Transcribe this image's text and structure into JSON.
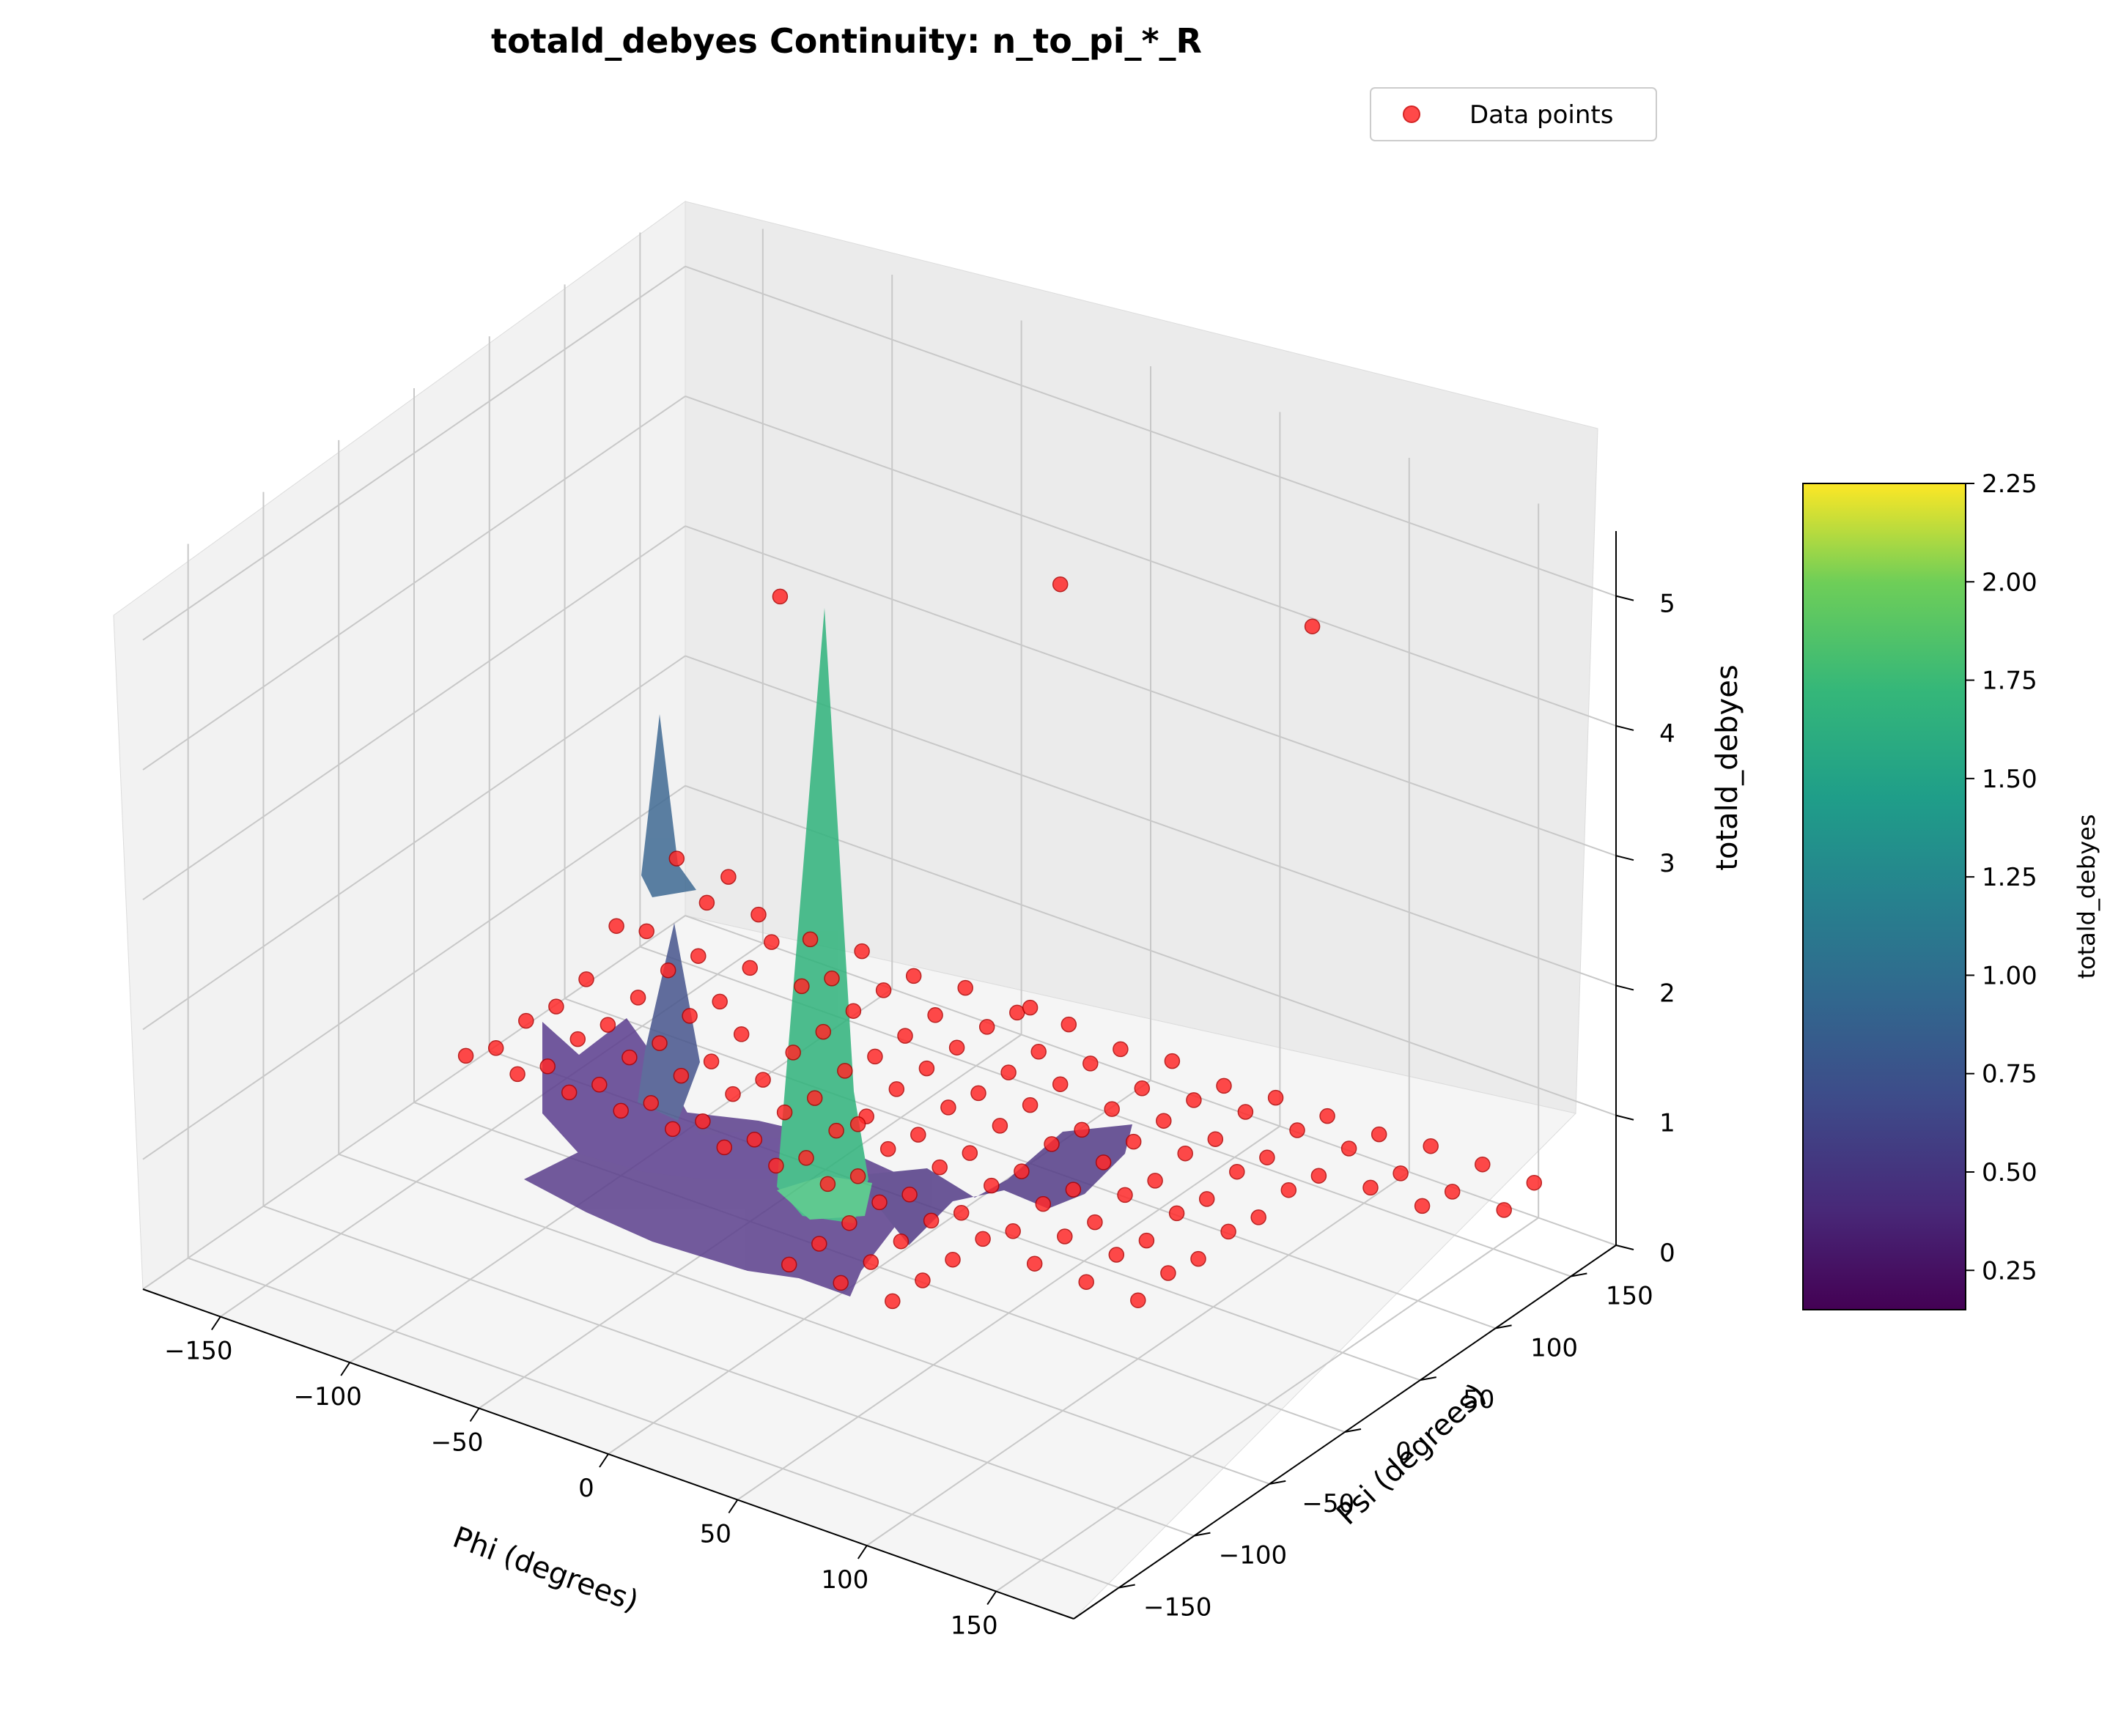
{
  "chart_data": {
    "type": "surface3d",
    "title": "totald_debyes Continuity: n_to_pi_*_R",
    "xlabel": "Phi (degrees)",
    "ylabel": "Psi (degrees)",
    "zlabel": "totald_debyes",
    "xlim": [
      -180,
      180
    ],
    "ylim": [
      -180,
      180
    ],
    "zlim": [
      0,
      5.5
    ],
    "x_ticks": [
      -150,
      -100,
      -50,
      0,
      50,
      100,
      150
    ],
    "x_tick_labels": [
      "−150",
      "−100",
      "−50",
      "0",
      "50",
      "100",
      "150"
    ],
    "y_ticks": [
      -150,
      -100,
      -50,
      0,
      50,
      100,
      150
    ],
    "y_tick_labels": [
      "−150",
      "−100",
      "−50",
      "0",
      "50",
      "100",
      "150"
    ],
    "z_ticks": [
      0,
      1,
      2,
      3,
      4,
      5
    ],
    "z_tick_labels": [
      "0",
      "1",
      "2",
      "3",
      "4",
      "5"
    ],
    "grid": true,
    "legend": {
      "position": "top-right",
      "entries": [
        {
          "name": "Data points",
          "color": "#ff2a2a"
        }
      ]
    },
    "colorbar": {
      "label": "totald_debyes",
      "colormap": "viridis",
      "range": [
        0.15,
        2.25
      ],
      "ticks": [
        0.25,
        0.5,
        0.75,
        1.0,
        1.25,
        1.5,
        1.75,
        2.0,
        2.25
      ],
      "tick_labels": [
        "0.25",
        "0.50",
        "0.75",
        "1.00",
        "1.25",
        "1.50",
        "1.75",
        "2.00",
        "2.25"
      ]
    },
    "point_color": "#ff2a2a",
    "points": [
      {
        "x": -160,
        "y": 0,
        "z": 0.5
      },
      {
        "x": -140,
        "y": 0,
        "z": 0.5
      },
      {
        "x": -120,
        "y": 0,
        "z": 0.5
      },
      {
        "x": -100,
        "y": 0,
        "z": 0.5
      },
      {
        "x": -80,
        "y": 0,
        "z": 0.5
      },
      {
        "x": -60,
        "y": 0,
        "z": 0.5
      },
      {
        "x": -40,
        "y": 0,
        "z": 0.5
      },
      {
        "x": -20,
        "y": 0,
        "z": 0.5
      },
      {
        "x": 0,
        "y": 0,
        "z": 0.5
      },
      {
        "x": 20,
        "y": 0,
        "z": 0.5
      },
      {
        "x": 40,
        "y": 0,
        "z": 0.5
      },
      {
        "x": -160,
        "y": 20,
        "z": 0.4
      },
      {
        "x": -140,
        "y": 20,
        "z": 0.4
      },
      {
        "x": -120,
        "y": 20,
        "z": 0.4
      },
      {
        "x": -100,
        "y": 20,
        "z": 0.4
      },
      {
        "x": -80,
        "y": 20,
        "z": 0.4
      },
      {
        "x": -60,
        "y": 20,
        "z": 0.4
      },
      {
        "x": -40,
        "y": 20,
        "z": 0.4
      },
      {
        "x": -20,
        "y": 20,
        "z": 0.4
      },
      {
        "x": 0,
        "y": 20,
        "z": 0.4
      },
      {
        "x": 20,
        "y": 20,
        "z": 0.4
      },
      {
        "x": 40,
        "y": 20,
        "z": 0.4
      },
      {
        "x": -160,
        "y": 40,
        "z": 0.45
      },
      {
        "x": -140,
        "y": 40,
        "z": 0.45
      },
      {
        "x": -120,
        "y": 40,
        "z": 0.45
      },
      {
        "x": -100,
        "y": 40,
        "z": 0.45
      },
      {
        "x": -80,
        "y": 40,
        "z": 0.45
      },
      {
        "x": -60,
        "y": 40,
        "z": 0.45
      },
      {
        "x": -40,
        "y": 40,
        "z": 0.45
      },
      {
        "x": -20,
        "y": 40,
        "z": 0.45
      },
      {
        "x": 0,
        "y": 40,
        "z": 0.45
      },
      {
        "x": 20,
        "y": 40,
        "z": 0.45
      },
      {
        "x": 40,
        "y": 40,
        "z": 0.45
      },
      {
        "x": -160,
        "y": 60,
        "z": 0.4
      },
      {
        "x": -140,
        "y": 60,
        "z": 0.4
      },
      {
        "x": -120,
        "y": 60,
        "z": 0.4
      },
      {
        "x": -100,
        "y": 60,
        "z": 0.4
      },
      {
        "x": -80,
        "y": 60,
        "z": 0.4
      },
      {
        "x": -60,
        "y": 60,
        "z": 0.4
      },
      {
        "x": -40,
        "y": 60,
        "z": 0.4
      },
      {
        "x": -20,
        "y": 60,
        "z": 0.4
      },
      {
        "x": 0,
        "y": 60,
        "z": 0.4
      },
      {
        "x": 20,
        "y": 60,
        "z": 0.4
      },
      {
        "x": 40,
        "y": 60,
        "z": 0.4
      },
      {
        "x": -160,
        "y": 80,
        "z": 0.45
      },
      {
        "x": -140,
        "y": 80,
        "z": 0.45
      },
      {
        "x": -120,
        "y": 80,
        "z": 0.45
      },
      {
        "x": -100,
        "y": 80,
        "z": 0.45
      },
      {
        "x": -80,
        "y": 80,
        "z": 0.45
      },
      {
        "x": -60,
        "y": 80,
        "z": 0.45
      },
      {
        "x": -40,
        "y": 80,
        "z": 0.45
      },
      {
        "x": -20,
        "y": 80,
        "z": 0.45
      },
      {
        "x": 0,
        "y": 80,
        "z": 0.45
      },
      {
        "x": 20,
        "y": 80,
        "z": 0.45
      },
      {
        "x": 40,
        "y": 80,
        "z": 0.45
      },
      {
        "x": -160,
        "y": 100,
        "z": 0.7
      },
      {
        "x": -140,
        "y": 100,
        "z": 0.5
      },
      {
        "x": -120,
        "y": 100,
        "z": 0.4
      },
      {
        "x": -100,
        "y": 100,
        "z": 1.0
      },
      {
        "x": -80,
        "y": 100,
        "z": 0.45
      },
      {
        "x": -60,
        "y": 100,
        "z": 0.4
      },
      {
        "x": -40,
        "y": 100,
        "z": 0.45
      },
      {
        "x": -20,
        "y": 100,
        "z": 0.4
      },
      {
        "x": 0,
        "y": 100,
        "z": 0.45
      },
      {
        "x": 20,
        "y": 100,
        "z": 0.4
      },
      {
        "x": 40,
        "y": 100,
        "z": 0.45
      },
      {
        "x": -160,
        "y": 120,
        "z": 0.5
      },
      {
        "x": -140,
        "y": 120,
        "z": 0.45
      },
      {
        "x": -120,
        "y": 120,
        "z": 0.5
      },
      {
        "x": -100,
        "y": 120,
        "z": 0.5
      },
      {
        "x": -80,
        "y": 120,
        "z": 0.45
      },
      {
        "x": -60,
        "y": 120,
        "z": 0.4
      },
      {
        "x": -40,
        "y": 120,
        "z": 0.45
      },
      {
        "x": -20,
        "y": 120,
        "z": 0.4
      },
      {
        "x": 0,
        "y": 120,
        "z": 0.45
      },
      {
        "x": 20,
        "y": 120,
        "z": 0.4
      },
      {
        "x": 40,
        "y": 120,
        "z": 0.45
      },
      {
        "x": -160,
        "y": 140,
        "z": 0.9
      },
      {
        "x": -140,
        "y": 140,
        "z": 0.9
      },
      {
        "x": -120,
        "y": 140,
        "z": 3.2
      },
      {
        "x": -100,
        "y": 140,
        "z": 0.4
      },
      {
        "x": -80,
        "y": 140,
        "z": 0.45
      },
      {
        "x": -60,
        "y": 140,
        "z": 0.4
      },
      {
        "x": -40,
        "y": 140,
        "z": 0.45
      },
      {
        "x": -20,
        "y": 140,
        "z": 0.4
      },
      {
        "x": 0,
        "y": 140,
        "z": 0.45
      },
      {
        "x": 20,
        "y": 140,
        "z": 0.4
      },
      {
        "x": 40,
        "y": 140,
        "z": 0.45
      },
      {
        "x": -160,
        "y": 160,
        "z": 0.4
      },
      {
        "x": -140,
        "y": 160,
        "z": 0.45
      },
      {
        "x": -120,
        "y": 160,
        "z": 0.4
      },
      {
        "x": -100,
        "y": 160,
        "z": 0.45
      },
      {
        "x": -80,
        "y": 160,
        "z": 0.4
      },
      {
        "x": -60,
        "y": 160,
        "z": 0.45
      },
      {
        "x": -40,
        "y": 160,
        "z": 0.4
      },
      {
        "x": -20,
        "y": 160,
        "z": 0.45
      },
      {
        "x": 0,
        "y": 160,
        "z": 0.4
      },
      {
        "x": 20,
        "y": 160,
        "z": 0.45
      },
      {
        "x": 40,
        "y": 160,
        "z": 0.4
      },
      {
        "x": 0,
        "y": -20,
        "z": 0.5
      },
      {
        "x": 20,
        "y": -20,
        "z": 0.5
      },
      {
        "x": 40,
        "y": -20,
        "z": 0.5
      },
      {
        "x": 0,
        "y": -40,
        "z": 0.5
      },
      {
        "x": 20,
        "y": -40,
        "z": 0.5
      },
      {
        "x": 40,
        "y": -40,
        "z": 0.5
      },
      {
        "x": 0,
        "y": -60,
        "z": 0.5
      },
      {
        "x": 20,
        "y": -60,
        "z": 0.5
      },
      {
        "x": 40,
        "y": -60,
        "z": 0.5
      },
      {
        "x": -20,
        "y": 20,
        "z": 0.8
      },
      {
        "x": 60,
        "y": 0,
        "z": 0.45
      },
      {
        "x": 80,
        "y": 0,
        "z": 0.45
      },
      {
        "x": 100,
        "y": 0,
        "z": 0.45
      },
      {
        "x": 60,
        "y": 20,
        "z": 0.5
      },
      {
        "x": 80,
        "y": 20,
        "z": 0.5
      },
      {
        "x": 100,
        "y": 20,
        "z": 0.5
      },
      {
        "x": 60,
        "y": 40,
        "z": 0.45
      },
      {
        "x": 80,
        "y": 40,
        "z": 0.45
      },
      {
        "x": 100,
        "y": 40,
        "z": 0.45
      },
      {
        "x": 60,
        "y": 60,
        "z": 0.5
      },
      {
        "x": 80,
        "y": 60,
        "z": 0.5
      },
      {
        "x": 100,
        "y": 60,
        "z": 0.5
      },
      {
        "x": 60,
        "y": 80,
        "z": 0.45
      },
      {
        "x": 80,
        "y": 80,
        "z": 0.45
      },
      {
        "x": 100,
        "y": 80,
        "z": 0.45
      },
      {
        "x": 60,
        "y": 100,
        "z": 0.5
      },
      {
        "x": 80,
        "y": 100,
        "z": 0.5
      },
      {
        "x": 100,
        "y": 100,
        "z": 0.5
      },
      {
        "x": 60,
        "y": 120,
        "z": 0.45
      },
      {
        "x": 80,
        "y": 120,
        "z": 0.45
      },
      {
        "x": 100,
        "y": 120,
        "z": 0.45
      },
      {
        "x": 60,
        "y": 140,
        "z": 0.5
      },
      {
        "x": 80,
        "y": 140,
        "z": 0.5
      },
      {
        "x": 100,
        "y": 140,
        "z": 0.5
      },
      {
        "x": 60,
        "y": 160,
        "z": 0.45
      },
      {
        "x": 80,
        "y": 160,
        "z": 0.45
      },
      {
        "x": 100,
        "y": 160,
        "z": 0.45
      },
      {
        "x": 0,
        "y": 120,
        "z": 4.3
      },
      {
        "x": 0,
        "y": 100,
        "z": 1.2
      },
      {
        "x": 80,
        "y": 150,
        "z": 4.3
      },
      {
        "x": 120,
        "y": 160,
        "z": 0.5
      },
      {
        "x": 140,
        "y": 160,
        "z": 0.5
      },
      {
        "x": 160,
        "y": 160,
        "z": 0.5
      },
      {
        "x": 120,
        "y": 140,
        "z": 0.45
      },
      {
        "x": 140,
        "y": 140,
        "z": 0.45
      },
      {
        "x": 160,
        "y": 140,
        "z": 0.45
      },
      {
        "x": 120,
        "y": 120,
        "z": 0.5
      },
      {
        "x": 140,
        "y": 120,
        "z": 0.5
      }
    ]
  }
}
